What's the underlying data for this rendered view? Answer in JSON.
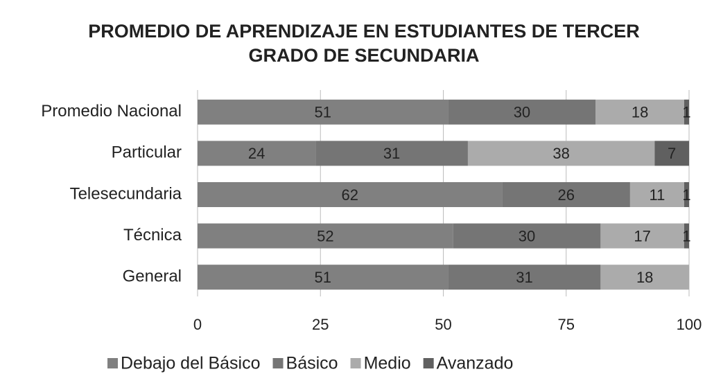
{
  "chart_data": {
    "type": "stacked-barh",
    "title": "PROMEDIO DE APRENDIZAJE EN ESTUDIANTES DE TERCER GRADO DE SECUNDARIA",
    "categories": [
      "Promedio Nacional",
      "Particular",
      "Telesecundaria",
      "Técnica",
      "General"
    ],
    "series": [
      {
        "name": "Debajo del Básico",
        "color": "#808080",
        "values": [
          51,
          24,
          62,
          52,
          51
        ]
      },
      {
        "name": "Básico",
        "color": "#757575",
        "values": [
          30,
          31,
          26,
          30,
          31
        ]
      },
      {
        "name": "Medio",
        "color": "#ababab",
        "values": [
          18,
          38,
          11,
          17,
          18
        ]
      },
      {
        "name": "Avanzado",
        "color": "#606060",
        "values": [
          1,
          7,
          1,
          1,
          0
        ]
      }
    ],
    "xlim": [
      0,
      100
    ],
    "xticks": [
      0,
      25,
      50,
      75,
      100
    ],
    "grid": true,
    "legend": "bottom"
  }
}
